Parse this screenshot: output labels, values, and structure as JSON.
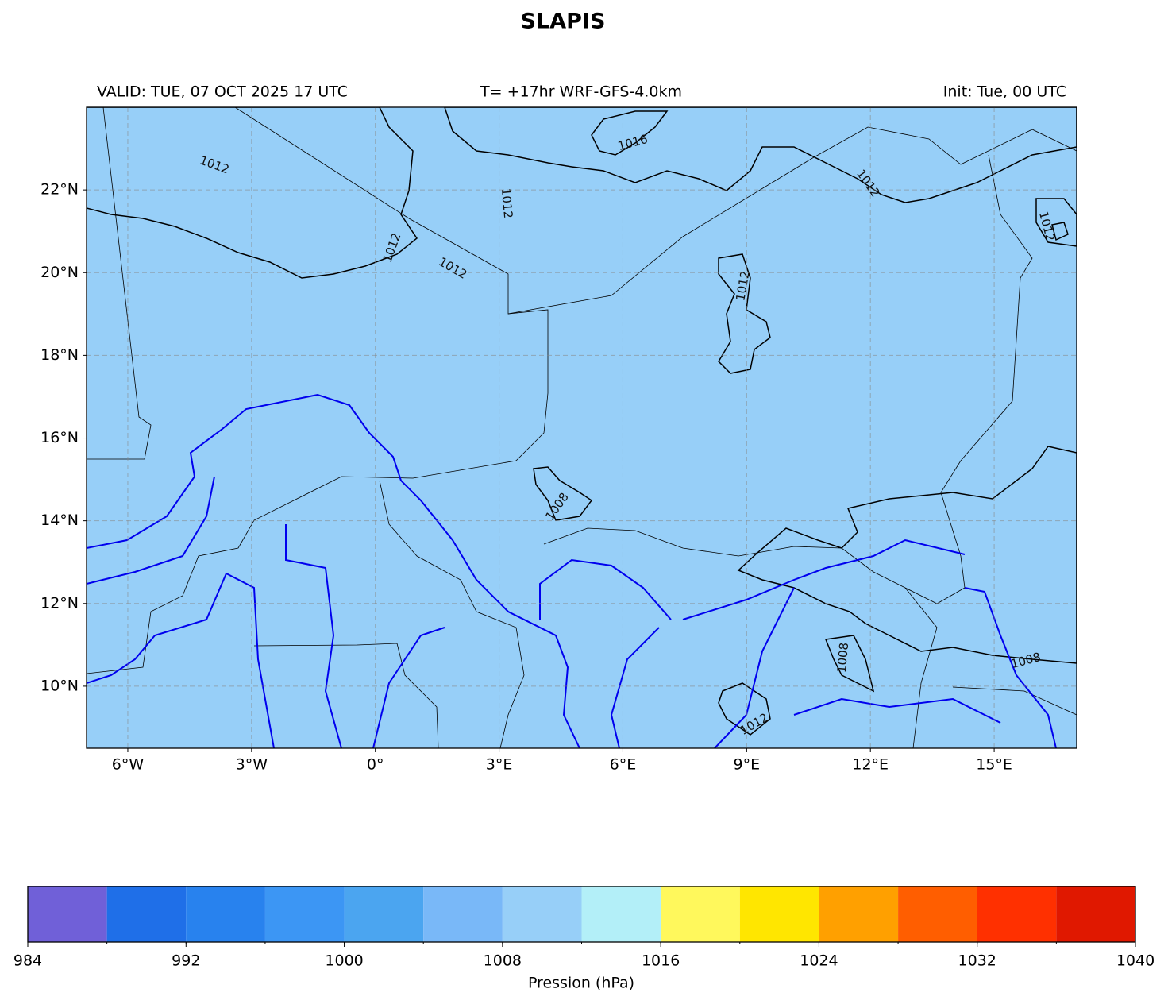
{
  "title": "SLAPIS",
  "header": {
    "valid": "VALID: TUE, 07 OCT 2025 17 UTC",
    "run": "T= +17hr WRF-GFS-4.0km",
    "init": "Init: Tue, 00 UTC"
  },
  "map": {
    "xlim": [
      -7,
      17
    ],
    "ylim": [
      8.5,
      24
    ],
    "grid": true,
    "xticks": [
      {
        "value": -6,
        "label": "6°W"
      },
      {
        "value": -3,
        "label": "3°W"
      },
      {
        "value": 0,
        "label": "0°"
      },
      {
        "value": 3,
        "label": "3°E"
      },
      {
        "value": 6,
        "label": "6°E"
      },
      {
        "value": 9,
        "label": "9°E"
      },
      {
        "value": 12,
        "label": "12°E"
      },
      {
        "value": 15,
        "label": "15°E"
      }
    ],
    "yticks": [
      {
        "value": 10,
        "label": "10°N"
      },
      {
        "value": 12,
        "label": "12°N"
      },
      {
        "value": 14,
        "label": "14°N"
      },
      {
        "value": 16,
        "label": "16°N"
      },
      {
        "value": 18,
        "label": "18°N"
      },
      {
        "value": 20,
        "label": "20°N"
      },
      {
        "value": 22,
        "label": "22°N"
      }
    ],
    "contour_labels": [
      "1012",
      "1012",
      "1012",
      "1012",
      "1012",
      "1012",
      "1012",
      "1012",
      "1016",
      "1008",
      "1008",
      "1008"
    ]
  },
  "colorbar": {
    "label": "Pression (hPa)",
    "levels": [
      984,
      988,
      992,
      996,
      1000,
      1004,
      1008,
      1012,
      1016,
      1020,
      1024,
      1028,
      1032,
      1036,
      1040
    ],
    "colors": [
      "#7060d8",
      "#1f6fe8",
      "#2882ee",
      "#3c96f4",
      "#4ba5f0",
      "#79b8f8",
      "#97cff8",
      "#b3eff8",
      "#fff85c",
      "#ffe600",
      "#ffa000",
      "#ff5e00",
      "#ff3000",
      "#e01800"
    ],
    "ticks": [
      984,
      992,
      1000,
      1008,
      1016,
      1024,
      1032,
      1040
    ]
  }
}
